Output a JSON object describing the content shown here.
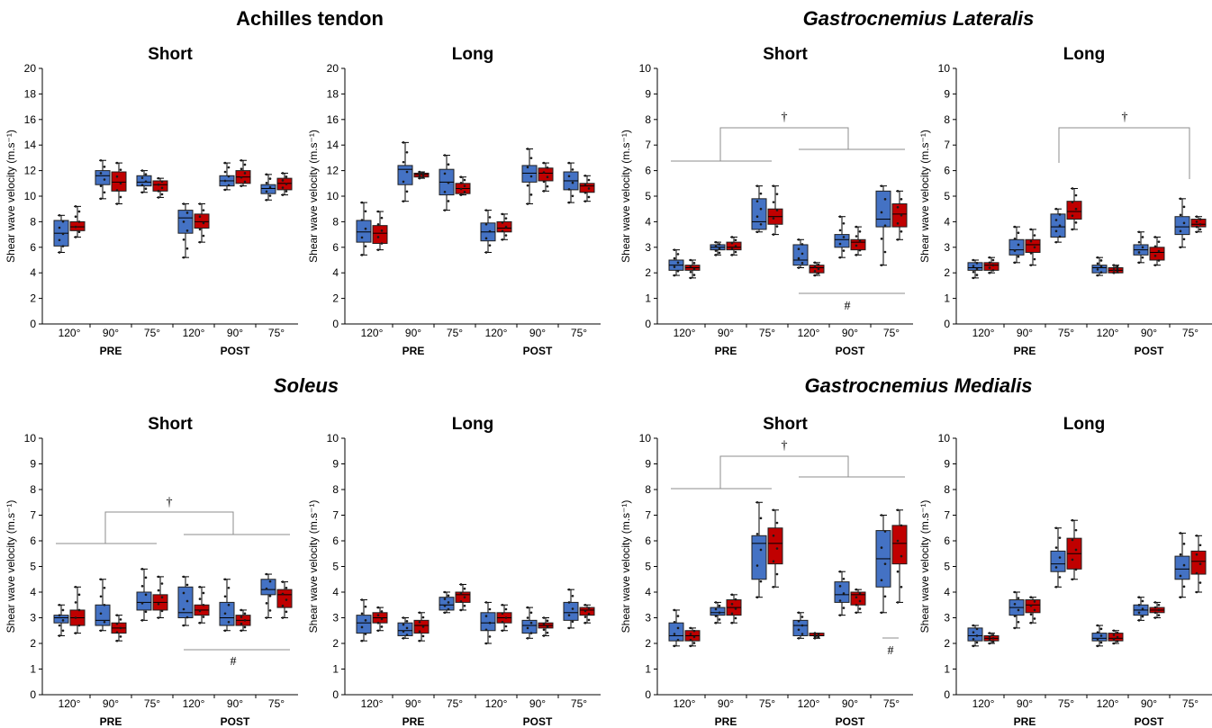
{
  "colors": {
    "blue": "#4472c4",
    "red": "#c00000",
    "axis": "#000000",
    "bracket": "#8c8c8c"
  },
  "figure_titles": [
    {
      "text": "Achilles tendon",
      "italic": false
    },
    {
      "text": "Gastrocnemius Lateralis",
      "italic": true
    },
    {
      "text": "Soleus",
      "italic": true
    },
    {
      "text": "Gastrocnemius Medialis",
      "italic": true
    }
  ],
  "chart_data": [
    {
      "type": "box",
      "title": "Short",
      "ylabel": "Shear wave velocity (m.s⁻¹)",
      "ylim": [
        0,
        20
      ],
      "yticks": [
        0,
        2,
        4,
        6,
        8,
        10,
        12,
        14,
        16,
        18,
        20
      ],
      "categories": [
        "120°",
        "90°",
        "75°",
        "120°",
        "90°",
        "75°"
      ],
      "groups": [
        "PRE",
        "POST"
      ],
      "boxes": [
        [
          [
            5.6,
            6.1,
            7.1,
            8.1,
            8.5
          ],
          [
            6.8,
            7.3,
            7.6,
            8.0,
            9.2
          ]
        ],
        [
          [
            9.8,
            10.9,
            11.6,
            12.0,
            12.8
          ],
          [
            9.4,
            10.4,
            11.1,
            11.9,
            12.6
          ]
        ],
        [
          [
            10.3,
            10.8,
            11.1,
            11.6,
            12.0
          ],
          [
            9.9,
            10.4,
            10.9,
            11.2,
            11.4
          ]
        ],
        [
          [
            5.2,
            7.1,
            8.3,
            8.9,
            9.4
          ],
          [
            6.4,
            7.5,
            8.0,
            8.6,
            9.4
          ]
        ],
        [
          [
            10.5,
            10.8,
            11.2,
            11.6,
            12.6
          ],
          [
            10.8,
            11.0,
            11.5,
            12.0,
            12.8
          ]
        ],
        [
          [
            9.7,
            10.2,
            10.6,
            10.9,
            11.7
          ],
          [
            10.1,
            10.5,
            11.0,
            11.4,
            11.8
          ]
        ]
      ],
      "significance": []
    },
    {
      "type": "box",
      "title": "Long",
      "ylabel": "Shear wave velocity (m.s⁻¹)",
      "ylim": [
        0,
        20
      ],
      "yticks": [
        0,
        2,
        4,
        6,
        8,
        10,
        12,
        14,
        16,
        18,
        20
      ],
      "categories": [
        "120°",
        "90°",
        "75°",
        "120°",
        "90°",
        "75°"
      ],
      "groups": [
        "PRE",
        "POST"
      ],
      "boxes": [
        [
          [
            5.4,
            6.4,
            7.2,
            8.1,
            9.5
          ],
          [
            5.8,
            6.3,
            7.1,
            7.7,
            8.8
          ]
        ],
        [
          [
            9.6,
            10.9,
            12.1,
            12.4,
            14.2
          ],
          [
            11.4,
            11.5,
            11.7,
            11.8,
            11.9
          ]
        ],
        [
          [
            8.9,
            10.1,
            11.1,
            12.1,
            13.2
          ],
          [
            10.1,
            10.2,
            10.6,
            11.0,
            11.5
          ]
        ],
        [
          [
            5.6,
            6.5,
            7.2,
            7.9,
            8.9
          ],
          [
            6.6,
            7.2,
            7.5,
            8.0,
            8.6
          ]
        ],
        [
          [
            9.4,
            11.1,
            11.8,
            12.4,
            13.7
          ],
          [
            10.4,
            11.2,
            11.8,
            12.2,
            12.6
          ]
        ],
        [
          [
            9.5,
            10.5,
            11.2,
            11.9,
            12.6
          ],
          [
            9.6,
            10.3,
            10.8,
            11.0,
            11.6
          ]
        ]
      ],
      "significance": []
    },
    {
      "type": "box",
      "title": "Short",
      "ylabel": "Shear wave velocity (m.s⁻¹)",
      "ylim": [
        0,
        10
      ],
      "yticks": [
        0,
        1,
        2,
        3,
        4,
        5,
        6,
        7,
        8,
        9,
        10
      ],
      "categories": [
        "120°",
        "90°",
        "75°",
        "120°",
        "90°",
        "75°"
      ],
      "groups": [
        "PRE",
        "POST"
      ],
      "boxes": [
        [
          [
            1.9,
            2.1,
            2.3,
            2.5,
            2.9
          ],
          [
            1.8,
            2.1,
            2.2,
            2.3,
            2.5
          ]
        ],
        [
          [
            2.7,
            2.9,
            3.0,
            3.1,
            3.2
          ],
          [
            2.7,
            2.9,
            3.0,
            3.2,
            3.4
          ]
        ],
        [
          [
            3.6,
            3.7,
            4.0,
            4.9,
            5.4
          ],
          [
            3.5,
            3.9,
            4.2,
            4.5,
            5.4
          ]
        ],
        [
          [
            2.2,
            2.3,
            2.5,
            3.1,
            3.3
          ],
          [
            1.9,
            2.0,
            2.2,
            2.3,
            2.4
          ]
        ],
        [
          [
            2.6,
            3.0,
            3.3,
            3.5,
            4.2
          ],
          [
            2.7,
            2.9,
            3.2,
            3.3,
            3.8
          ]
        ],
        [
          [
            2.3,
            3.8,
            4.1,
            5.2,
            5.4
          ],
          [
            3.3,
            3.8,
            4.3,
            4.7,
            5.2
          ]
        ]
      ],
      "significance": [
        "†",
        "#"
      ]
    },
    {
      "type": "box",
      "title": "Long",
      "ylabel": "Shear wave velocity (m.s⁻¹)",
      "ylim": [
        0,
        10
      ],
      "yticks": [
        0,
        1,
        2,
        3,
        4,
        5,
        6,
        7,
        8,
        9,
        10
      ],
      "categories": [
        "120°",
        "90°",
        "75°",
        "120°",
        "90°",
        "75°"
      ],
      "groups": [
        "PRE",
        "POST"
      ],
      "boxes": [
        [
          [
            1.8,
            2.1,
            2.2,
            2.4,
            2.5
          ],
          [
            2.0,
            2.1,
            2.3,
            2.4,
            2.6
          ]
        ],
        [
          [
            2.4,
            2.7,
            2.9,
            3.3,
            3.8
          ],
          [
            2.3,
            2.8,
            3.1,
            3.3,
            3.7
          ]
        ],
        [
          [
            3.2,
            3.4,
            3.8,
            4.3,
            4.5
          ],
          [
            3.7,
            4.1,
            4.4,
            4.8,
            5.3
          ]
        ],
        [
          [
            1.9,
            2.0,
            2.2,
            2.3,
            2.6
          ],
          [
            2.0,
            2.0,
            2.1,
            2.2,
            2.3
          ]
        ],
        [
          [
            2.4,
            2.7,
            2.9,
            3.1,
            3.6
          ],
          [
            2.3,
            2.5,
            2.8,
            3.0,
            3.4
          ]
        ],
        [
          [
            3.0,
            3.5,
            3.8,
            4.2,
            4.9
          ],
          [
            3.6,
            3.8,
            3.9,
            4.1,
            4.2
          ]
        ]
      ],
      "significance": [
        "†"
      ]
    },
    {
      "type": "box",
      "title": "Short",
      "ylabel": "Shear wave velocity (m.s⁻¹)",
      "ylim": [
        0,
        10
      ],
      "yticks": [
        0,
        1,
        2,
        3,
        4,
        5,
        6,
        7,
        8,
        9,
        10
      ],
      "categories": [
        "120°",
        "90°",
        "75°",
        "120°",
        "90°",
        "75°"
      ],
      "groups": [
        "PRE",
        "POST"
      ],
      "boxes": [
        [
          [
            2.3,
            2.8,
            3.0,
            3.1,
            3.5
          ],
          [
            2.4,
            2.7,
            3.0,
            3.3,
            4.2
          ]
        ],
        [
          [
            2.5,
            2.7,
            2.9,
            3.5,
            4.5
          ],
          [
            2.1,
            2.4,
            2.6,
            2.8,
            3.1
          ]
        ],
        [
          [
            2.9,
            3.3,
            3.6,
            4.0,
            4.9
          ],
          [
            3.0,
            3.3,
            3.6,
            3.9,
            4.6
          ]
        ],
        [
          [
            2.7,
            3.0,
            3.2,
            4.2,
            4.6
          ],
          [
            2.8,
            3.1,
            3.3,
            3.5,
            4.2
          ]
        ],
        [
          [
            2.5,
            2.7,
            3.0,
            3.6,
            4.5
          ],
          [
            2.5,
            2.7,
            2.9,
            3.1,
            3.3
          ]
        ],
        [
          [
            3.0,
            3.9,
            4.1,
            4.5,
            4.7
          ],
          [
            3.0,
            3.4,
            3.9,
            4.1,
            4.4
          ]
        ]
      ],
      "significance": [
        "†",
        "#"
      ]
    },
    {
      "type": "box",
      "title": "Long",
      "ylabel": "Shear wave velocity (m.s⁻¹)",
      "ylim": [
        0,
        10
      ],
      "yticks": [
        0,
        1,
        2,
        3,
        4,
        5,
        6,
        7,
        8,
        9,
        10
      ],
      "categories": [
        "120°",
        "90°",
        "75°",
        "120°",
        "90°",
        "75°"
      ],
      "groups": [
        "PRE",
        "POST"
      ],
      "boxes": [
        [
          [
            2.1,
            2.4,
            2.8,
            3.1,
            3.7
          ],
          [
            2.5,
            2.8,
            3.0,
            3.2,
            3.4
          ]
        ],
        [
          [
            2.2,
            2.3,
            2.5,
            2.8,
            3.0
          ],
          [
            2.1,
            2.4,
            2.7,
            2.9,
            3.2
          ]
        ],
        [
          [
            3.2,
            3.3,
            3.5,
            3.8,
            4.0
          ],
          [
            3.3,
            3.6,
            3.9,
            4.0,
            4.3
          ]
        ],
        [
          [
            2.0,
            2.5,
            2.8,
            3.2,
            3.6
          ],
          [
            2.5,
            2.8,
            3.0,
            3.2,
            3.5
          ]
        ],
        [
          [
            2.2,
            2.4,
            2.7,
            2.9,
            3.4
          ],
          [
            2.3,
            2.6,
            2.7,
            2.8,
            3.0
          ]
        ],
        [
          [
            2.6,
            2.9,
            3.2,
            3.6,
            4.1
          ],
          [
            2.8,
            3.1,
            3.3,
            3.4,
            3.5
          ]
        ]
      ],
      "significance": []
    },
    {
      "type": "box",
      "title": "Short",
      "ylabel": "Shear wave velocity (m.s⁻¹)",
      "ylim": [
        0,
        10
      ],
      "yticks": [
        0,
        1,
        2,
        3,
        4,
        5,
        6,
        7,
        8,
        9,
        10
      ],
      "categories": [
        "120°",
        "90°",
        "75°",
        "120°",
        "90°",
        "75°"
      ],
      "groups": [
        "PRE",
        "POST"
      ],
      "boxes": [
        [
          [
            1.9,
            2.1,
            2.3,
            2.8,
            3.3
          ],
          [
            1.9,
            2.1,
            2.3,
            2.5,
            2.6
          ]
        ],
        [
          [
            2.8,
            3.1,
            3.2,
            3.4,
            3.6
          ],
          [
            2.8,
            3.1,
            3.4,
            3.7,
            3.9
          ]
        ],
        [
          [
            3.8,
            4.5,
            5.9,
            6.2,
            7.5
          ],
          [
            4.2,
            5.1,
            5.9,
            6.5,
            7.2
          ]
        ],
        [
          [
            2.2,
            2.3,
            2.7,
            2.9,
            3.2
          ],
          [
            2.2,
            2.3,
            2.3,
            2.4,
            2.4
          ]
        ],
        [
          [
            3.1,
            3.6,
            3.9,
            4.4,
            4.8
          ],
          [
            3.2,
            3.5,
            3.9,
            4.0,
            4.1
          ]
        ],
        [
          [
            3.2,
            4.2,
            5.3,
            6.4,
            7.0
          ],
          [
            3.6,
            5.1,
            5.9,
            6.6,
            7.2
          ]
        ]
      ],
      "significance": [
        "†",
        "#"
      ]
    },
    {
      "type": "box",
      "title": "Long",
      "ylabel": "Shear wave velocity (m.s⁻¹)",
      "ylim": [
        0,
        10
      ],
      "yticks": [
        0,
        1,
        2,
        3,
        4,
        5,
        6,
        7,
        8,
        9,
        10
      ],
      "categories": [
        "120°",
        "90°",
        "75°",
        "120°",
        "90°",
        "75°"
      ],
      "groups": [
        "PRE",
        "POST"
      ],
      "boxes": [
        [
          [
            1.9,
            2.1,
            2.3,
            2.6,
            2.7
          ],
          [
            2.0,
            2.1,
            2.2,
            2.3,
            2.4
          ]
        ],
        [
          [
            2.6,
            3.1,
            3.4,
            3.7,
            4.0
          ],
          [
            2.8,
            3.2,
            3.5,
            3.7,
            3.8
          ]
        ],
        [
          [
            4.2,
            4.8,
            5.1,
            5.6,
            6.5
          ],
          [
            4.5,
            4.9,
            5.5,
            6.1,
            6.8
          ]
        ],
        [
          [
            1.9,
            2.1,
            2.2,
            2.4,
            2.7
          ],
          [
            2.0,
            2.1,
            2.2,
            2.4,
            2.5
          ]
        ],
        [
          [
            2.9,
            3.1,
            3.3,
            3.5,
            3.8
          ],
          [
            3.0,
            3.2,
            3.3,
            3.4,
            3.6
          ]
        ],
        [
          [
            3.8,
            4.5,
            4.9,
            5.4,
            6.3
          ],
          [
            4.0,
            4.7,
            5.2,
            5.6,
            6.2
          ]
        ]
      ],
      "significance": []
    }
  ]
}
